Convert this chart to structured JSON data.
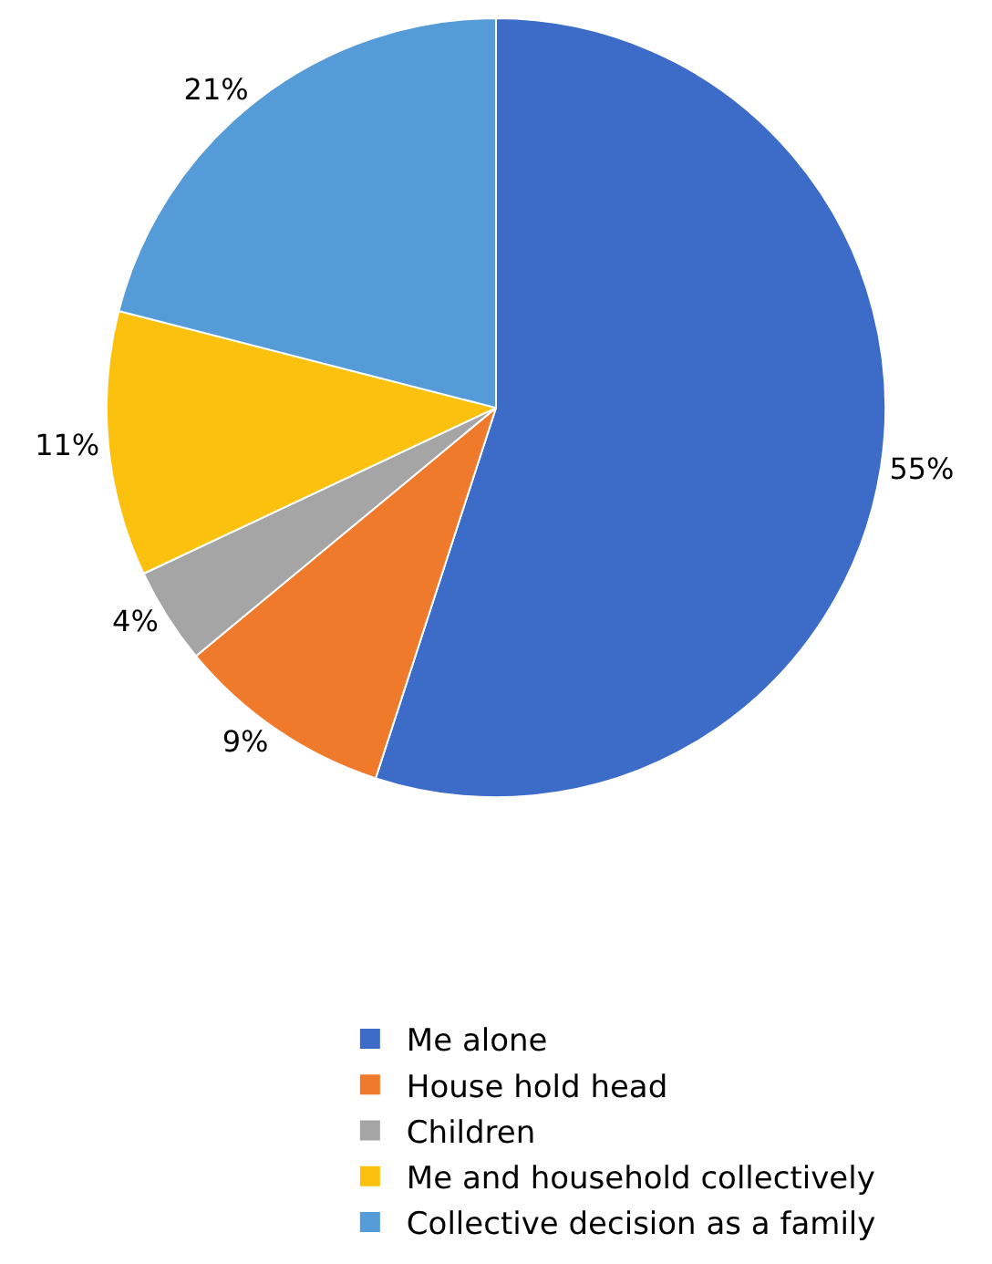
{
  "chart_data": {
    "type": "pie",
    "categories": [
      "Me alone",
      "House hold head",
      "Children",
      "Me and household collectively",
      "Collective decision as a family"
    ],
    "values": [
      55,
      9,
      4,
      11,
      21
    ],
    "value_labels": [
      "55%",
      "9%",
      "4%",
      "11%",
      "21%"
    ],
    "colors": [
      "#3d6cc8",
      "#ef7a2c",
      "#a5a5a5",
      "#fcc10e",
      "#559bd8"
    ],
    "legend": "bottom"
  }
}
